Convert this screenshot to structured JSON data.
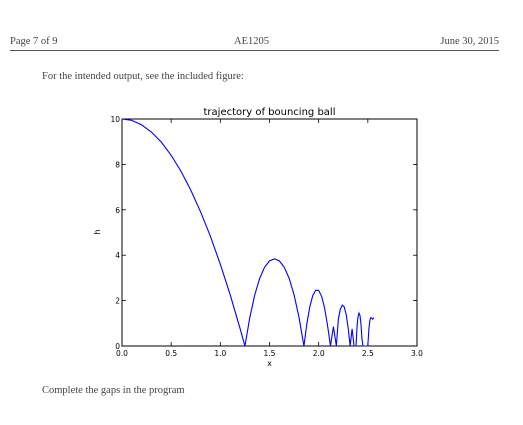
{
  "header": {
    "left": "Page 7 of 9",
    "center": "AE1205",
    "right": "June 30, 2015"
  },
  "intro_text": "For the intended output, see the included figure:",
  "closing_text": "Complete the gaps in the program",
  "chart_data": {
    "type": "line",
    "title": "trajectory of bouncing ball",
    "xlabel": "x",
    "ylabel": "h",
    "xlim": [
      0.0,
      3.0
    ],
    "ylim": [
      0,
      10
    ],
    "xticks": [
      "0.0",
      "0.5",
      "1.0",
      "1.5",
      "2.0",
      "2.5",
      "3.0"
    ],
    "yticks": [
      "0",
      "2",
      "4",
      "6",
      "8",
      "10"
    ],
    "grid": false,
    "color": "#0000ff",
    "series": [
      {
        "x": [
          0.0,
          0.1,
          0.2,
          0.3,
          0.4,
          0.5,
          0.6,
          0.7,
          0.8,
          0.9,
          1.0,
          1.1,
          1.2,
          1.25,
          1.3,
          1.35,
          1.4,
          1.45,
          1.5,
          1.55,
          1.6,
          1.65,
          1.7,
          1.75,
          1.8,
          1.85,
          1.88,
          1.91,
          1.94,
          1.97,
          2.0,
          2.03,
          2.06,
          2.09,
          2.12,
          2.15,
          2.18,
          2.2,
          2.22,
          2.24,
          2.26,
          2.28,
          2.3,
          2.32,
          2.34,
          2.36,
          2.38,
          2.39,
          2.4,
          2.41,
          2.42,
          2.43,
          2.44,
          2.45,
          2.46,
          2.47,
          2.48,
          2.49,
          2.5,
          2.51,
          2.52,
          2.53,
          2.54,
          2.55,
          2.56
        ],
        "y": [
          10.0,
          9.94,
          9.74,
          9.42,
          8.98,
          8.4,
          7.7,
          6.86,
          5.9,
          4.82,
          3.6,
          2.26,
          0.78,
          0.0,
          1.26,
          2.25,
          2.98,
          3.47,
          3.75,
          3.84,
          3.75,
          3.47,
          2.98,
          2.25,
          1.26,
          0.0,
          0.98,
          1.73,
          2.22,
          2.46,
          2.45,
          2.19,
          1.68,
          0.91,
          0.0,
          0.85,
          0.0,
          1.18,
          1.62,
          1.8,
          1.72,
          1.38,
          0.79,
          0.0,
          0.75,
          0.0,
          0.0,
          0.85,
          1.29,
          1.45,
          1.35,
          0.98,
          0.34,
          0.0,
          0.0,
          0.0,
          0.0,
          0.0,
          0.0,
          0.71,
          1.11,
          1.25,
          1.23,
          1.18,
          1.25
        ]
      }
    ]
  }
}
